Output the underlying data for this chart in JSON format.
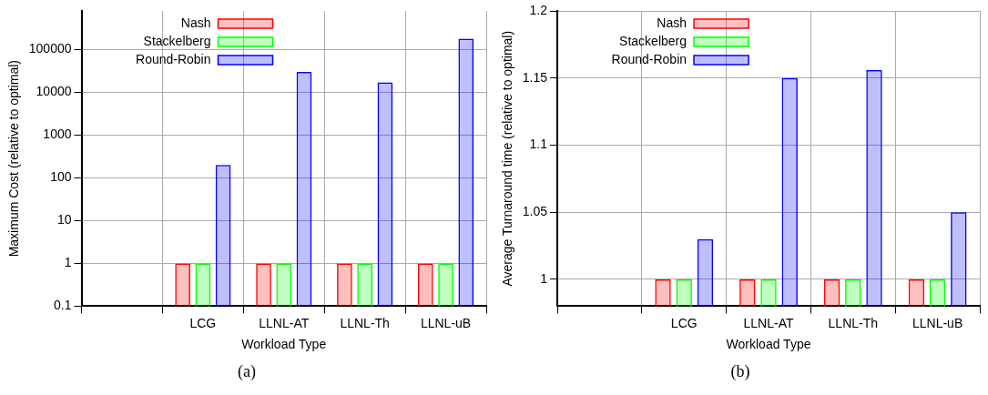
{
  "chart_data": [
    {
      "type": "bar",
      "xlabel": "Workload Type",
      "ylabel": "Maximum Cost (relative to optimal)",
      "categories": [
        null,
        "LCG",
        "LLNL-AT",
        "LLNL-Th",
        "LLNL-uB"
      ],
      "series": [
        {
          "name": "Nash",
          "color": "#ff0000",
          "values": [
            null,
            1,
            1,
            1,
            1
          ]
        },
        {
          "name": "Stackelberg",
          "color": "#00ff00",
          "values": [
            null,
            1,
            1,
            1,
            1
          ]
        },
        {
          "name": "Round-Robin",
          "color": "#0000ff",
          "values": [
            null,
            200,
            30000,
            17000,
            180000
          ]
        }
      ],
      "log": "y",
      "ylim": [
        0.1,
        800000
      ],
      "yticks": [
        0.1,
        1,
        10,
        100,
        1000,
        10000,
        100000
      ],
      "grid": true,
      "legend": "top left",
      "annotations": [
        "(a)"
      ]
    },
    {
      "type": "bar",
      "xlabel": "Workload Type",
      "ylabel": "Average Turnaround time (relative to optimal)",
      "categories": [
        null,
        "LCG",
        "LLNL-AT",
        "LLNL-Th",
        "LLNL-uB"
      ],
      "series": [
        {
          "name": "Nash",
          "color": "#ff0000",
          "values": [
            null,
            1,
            1,
            1,
            1
          ]
        },
        {
          "name": "Stackelberg",
          "color": "#00ff00",
          "values": [
            null,
            1,
            1,
            1,
            1
          ]
        },
        {
          "name": "Round-Robin",
          "color": "#0000ff",
          "values": [
            null,
            1.03,
            1.15,
            1.156,
            1.05
          ]
        }
      ],
      "ylim": [
        0.98,
        1.2
      ],
      "yticks": [
        1,
        1.05,
        1.1,
        1.15,
        1.2
      ],
      "grid": true,
      "legend": "top left",
      "annotations": [
        "(b)"
      ]
    }
  ]
}
